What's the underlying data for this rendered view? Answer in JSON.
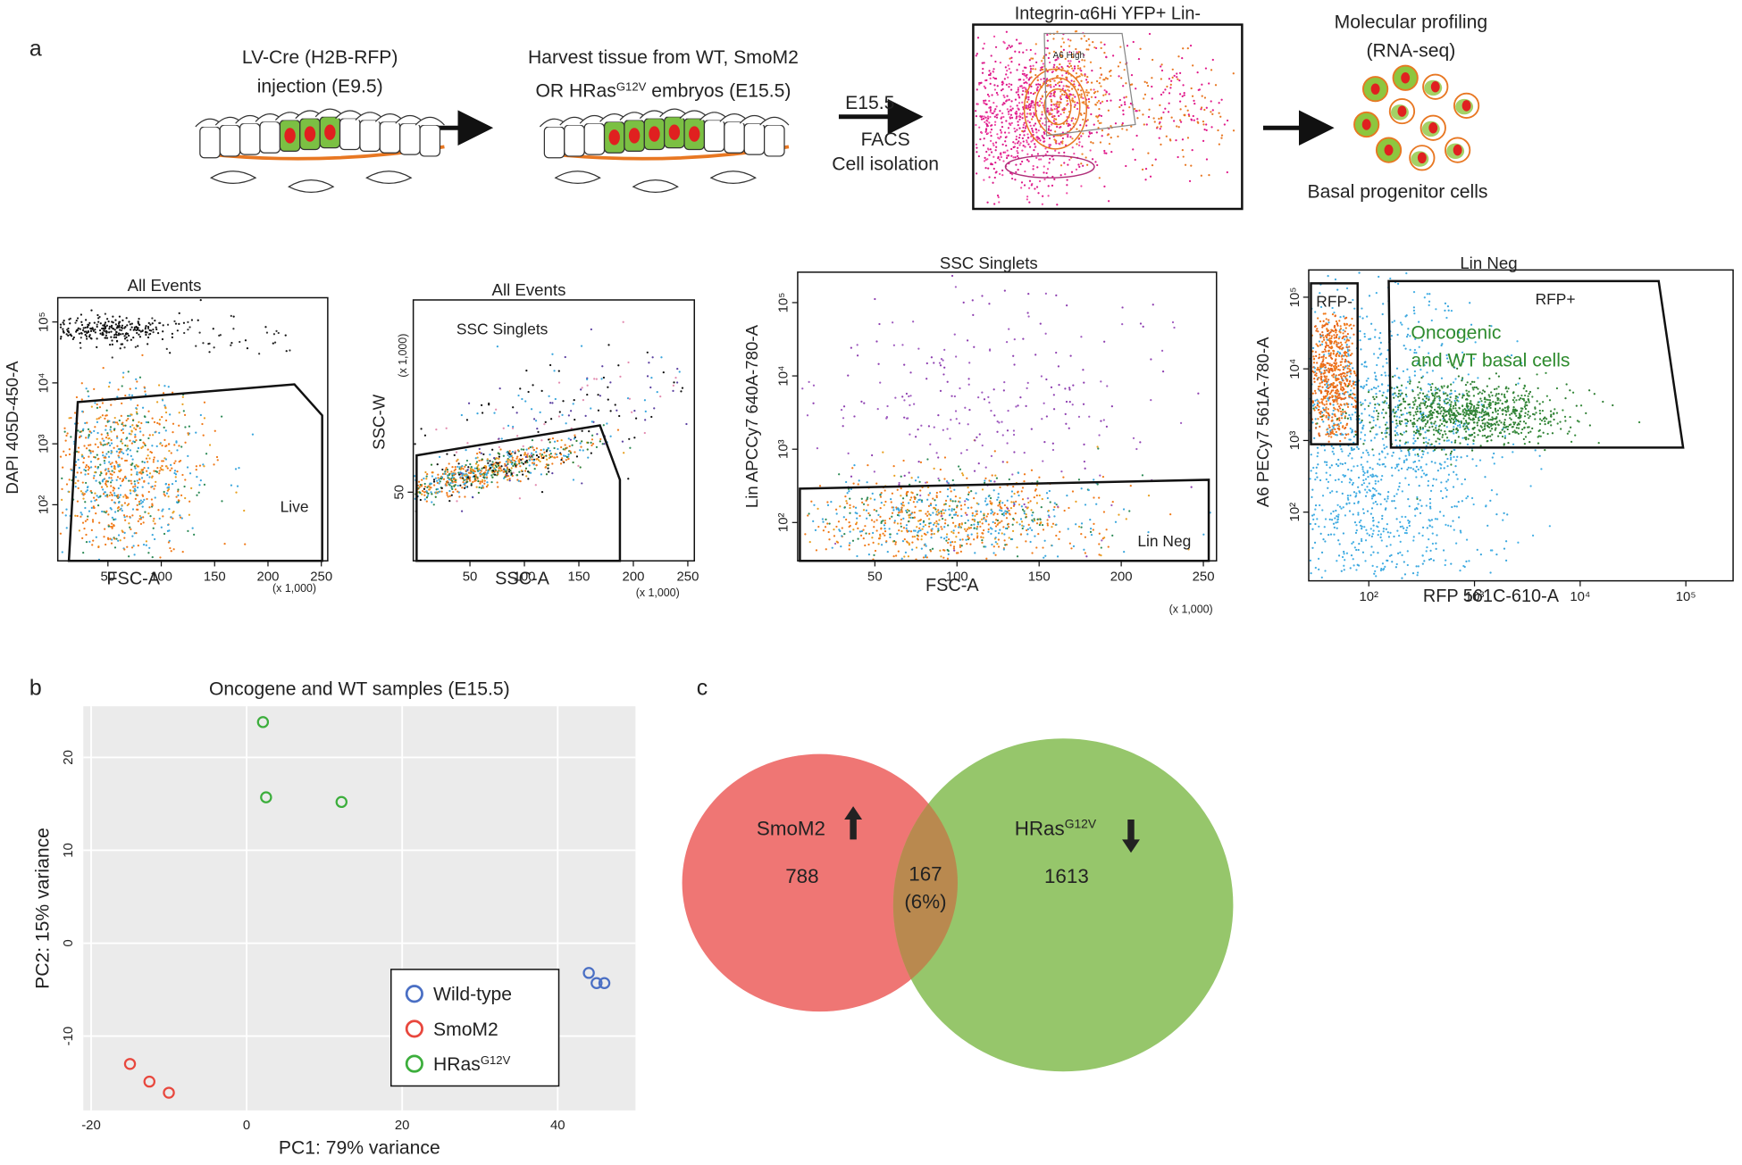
{
  "panel_labels": [
    "a",
    "b",
    "c"
  ],
  "workflow": {
    "injection": [
      "LV-Cre (H2B-RFP)",
      "injection (E9.5)"
    ],
    "harvest": {
      "line1": "Harvest tissue from WT, SmoM2",
      "line2_before": "OR HRas",
      "line2_superscript": "G12V",
      "line2_after": " embryos (E15.5)"
    },
    "sort": [
      "E15.5",
      "FACS",
      "Cell isolation"
    ],
    "sort_plot": {
      "title": "Integrin-α6Hi YFP+ Lin-",
      "gate": "A6 High"
    },
    "profiling": [
      "Molecular profiling",
      "(RNA-seq)"
    ],
    "cells": "Basal progenitor cells"
  },
  "facs_plots": [
    {
      "title": "All Events",
      "x_label": "FSC-A",
      "y_label": "DAPI 405D-450-A",
      "x_multiplier": "(x 1,000)",
      "x_log": false,
      "y_log": true,
      "xlim": [
        3,
        256
      ],
      "ylim": [
        12,
        250000
      ],
      "xticks": [
        50,
        100,
        150,
        200,
        250
      ],
      "yticks": [
        {
          "value": 100,
          "label": "10²"
        },
        {
          "value": 1000,
          "label": "10³"
        },
        {
          "value": 10000,
          "label": "10⁴"
        },
        {
          "value": 100000,
          "label": "10⁵"
        }
      ],
      "gates": [
        "Live"
      ]
    },
    {
      "title": "All Events",
      "x_label": "SSC-A",
      "y_label": "SSC-W",
      "x_multiplier": "(x 1,000)",
      "y_multiplier": "(x 1,000)",
      "x_log": false,
      "y_log": false,
      "xlim": [
        -2,
        256
      ],
      "ylim": [
        0,
        190
      ],
      "xticks": [
        50,
        100,
        150,
        200,
        250
      ],
      "yticks": [
        50
      ],
      "gates": [
        "SSC Singlets"
      ]
    },
    {
      "title": "SSC Singlets",
      "x_label": "FSC-A",
      "y_label": "Lin APCCy7 640A-780-A",
      "x_multiplier": "(x 1,000)",
      "x_log": false,
      "y_log": true,
      "xlim": [
        3,
        258
      ],
      "ylim": [
        30,
        260000
      ],
      "xticks": [
        50,
        100,
        150,
        200,
        250
      ],
      "yticks": [
        {
          "value": 100,
          "label": "10²"
        },
        {
          "value": 1000,
          "label": "10³"
        },
        {
          "value": 10000,
          "label": "10⁴"
        },
        {
          "value": 100000,
          "label": "10⁵"
        }
      ],
      "gates": [
        "Lin Neg"
      ]
    },
    {
      "title": "Lin Neg",
      "x_label": "RFP 561C-610-A",
      "y_label": "A6 PECy7 561A-780-A",
      "x_log": true,
      "y_log": true,
      "xlim": [
        27,
        280000
      ],
      "ylim": [
        11,
        240000
      ],
      "xticks": [
        {
          "value": 100,
          "label": "10²"
        },
        {
          "value": 1000,
          "label": "10³"
        },
        {
          "value": 10000,
          "label": "10⁴"
        },
        {
          "value": 100000,
          "label": "10⁵"
        }
      ],
      "yticks": [
        {
          "value": 100,
          "label": "10²"
        },
        {
          "value": 1000,
          "label": "10³"
        },
        {
          "value": 10000,
          "label": "10⁴"
        },
        {
          "value": 100000,
          "label": "10⁵"
        }
      ],
      "gates": [
        "RFP-",
        "RFP+"
      ],
      "annotation": [
        "Oncogenic",
        "and WT basal cells"
      ]
    }
  ],
  "chart_data": [
    {
      "type": "scatter",
      "title": "Oncogene and WT samples (E15.5)",
      "x_label": "PC1: 79% variance",
      "y_label": "PC2: 15% variance",
      "xlim": [
        -21,
        50
      ],
      "ylim": [
        -18,
        25.5
      ],
      "xticks": [
        -20,
        0,
        20,
        40
      ],
      "yticks": [
        -10,
        0,
        10,
        20
      ],
      "grid": true,
      "series": [
        {
          "name": "Wild-type",
          "color": "#4a6fc4",
          "x": [
            44,
            45,
            46
          ],
          "values": [
            -3.2,
            -4.3,
            -4.3
          ]
        },
        {
          "name": "SmoM2",
          "color": "#e8473d",
          "x": [
            -15,
            -12.5,
            -10
          ],
          "values": [
            -13,
            -14.9,
            -16.1
          ]
        },
        {
          "name": "HRas",
          "name_superscript": "G12V",
          "color": "#3cae3c",
          "x": [
            2.1,
            2.5,
            12.2
          ],
          "values": [
            23.8,
            15.7,
            15.2
          ]
        }
      ]
    },
    {
      "type": "venn",
      "sets": [
        {
          "name": "SmoM2",
          "count": 788,
          "color": "#ef7674",
          "direction": "up"
        },
        {
          "name": "HRas",
          "name_superscript": "G12V",
          "count": 1613,
          "color": "#96c66b",
          "direction": "down"
        }
      ],
      "overlap": 167,
      "overlap_share": 6,
      "overlap_share_label": "(6%)"
    }
  ]
}
